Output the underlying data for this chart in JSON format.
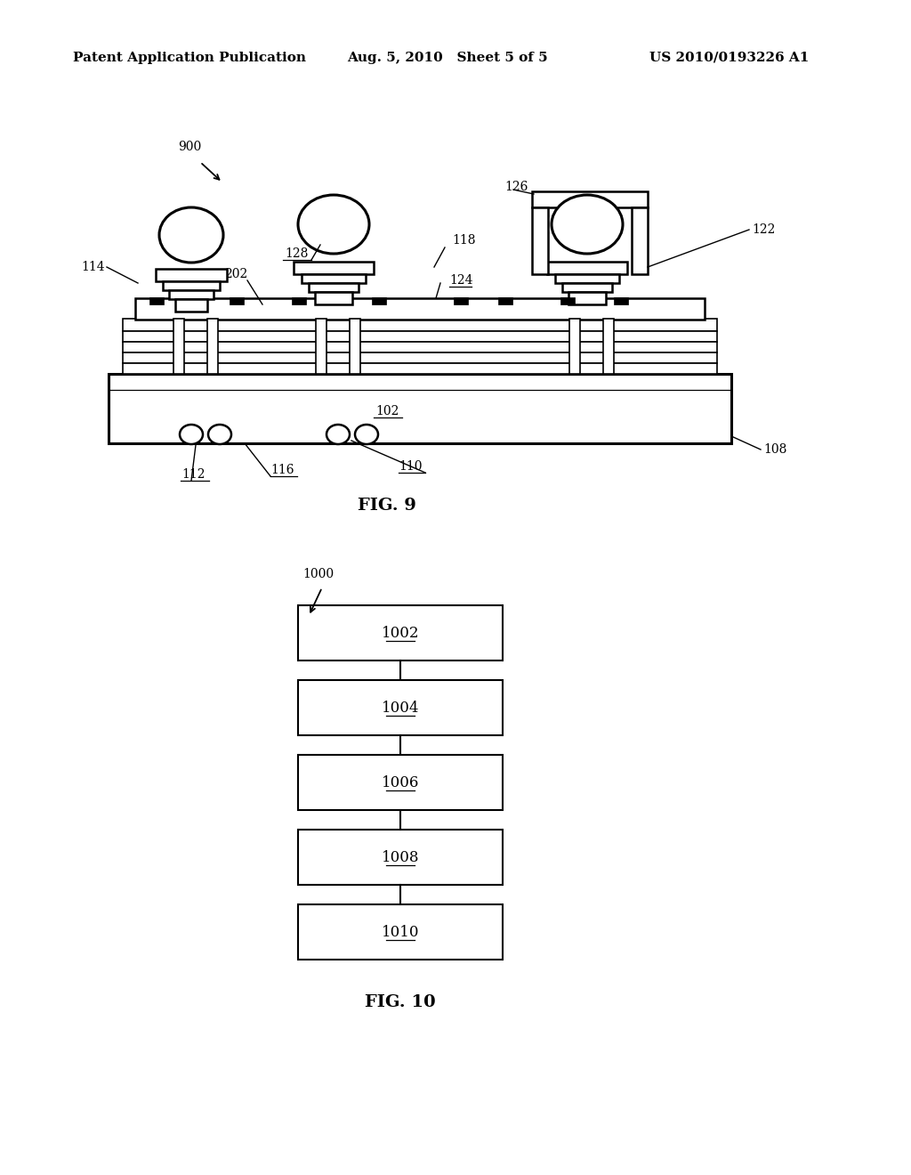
{
  "header_left": "Patent Application Publication",
  "header_mid": "Aug. 5, 2010   Sheet 5 of 5",
  "header_right": "US 2010/0193226 A1",
  "fig9_label": "FIG. 9",
  "fig10_label": "FIG. 10",
  "flowchart_boxes": [
    "1002",
    "1004",
    "1006",
    "1008",
    "1010"
  ],
  "bg_color": "#ffffff"
}
